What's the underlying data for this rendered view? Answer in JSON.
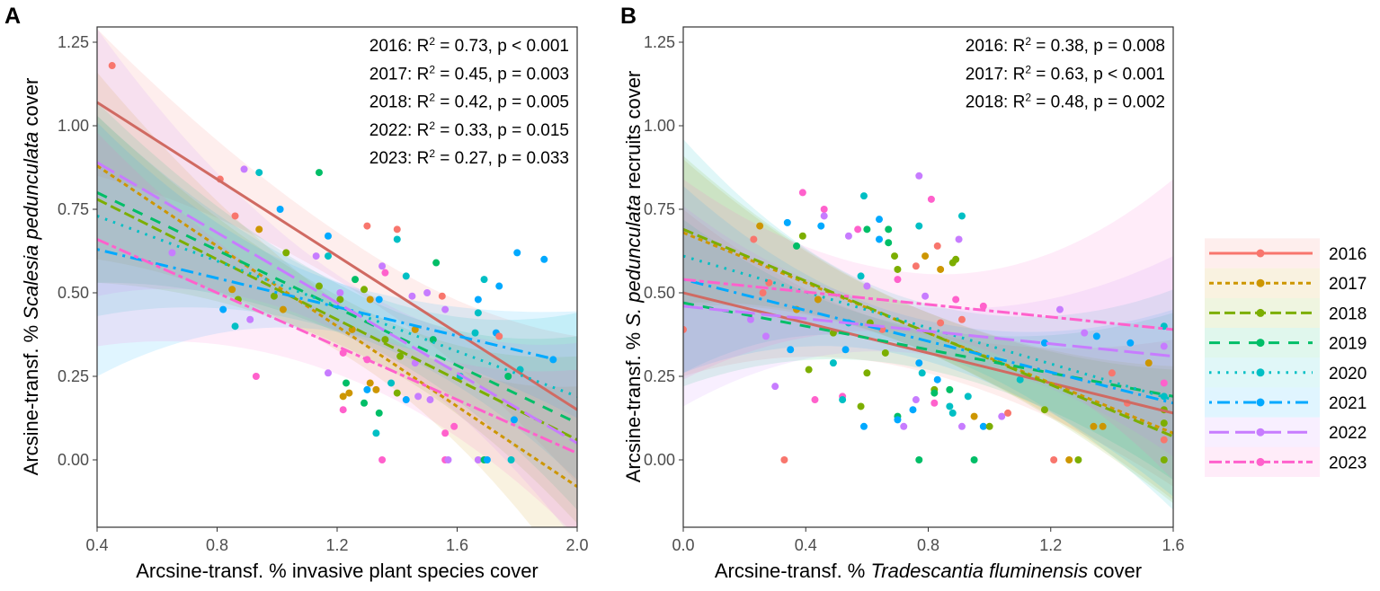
{
  "chart_data": [
    {
      "type": "scatter",
      "panel_label": "A",
      "xlabel_parts": [
        "Arcsine-transf. % invasive plant species cover"
      ],
      "ylabel_parts": [
        "Arcsine-transf. % ",
        "Scalesia pedunculata",
        " cover"
      ],
      "xlim": [
        0.4,
        2.0
      ],
      "ylim": [
        -0.2,
        1.29
      ],
      "xticks": [
        "0.4",
        "0.8",
        "1.2",
        "1.6",
        "2.0"
      ],
      "yticks": [
        "0.00",
        "0.25",
        "0.50",
        "0.75",
        "1.00",
        "1.25"
      ],
      "x_mean": 1.3,
      "annotations": [
        {
          "year": "2016",
          "r2": "0.73",
          "p": "p < 0.001"
        },
        {
          "year": "2017",
          "r2": "0.45",
          "p": "p = 0.003"
        },
        {
          "year": "2018",
          "r2": "0.42",
          "p": "p = 0.005"
        },
        {
          "year": "2022",
          "r2": "0.33",
          "p": "p = 0.015"
        },
        {
          "year": "2023",
          "r2": "0.27",
          "p": "p = 0.033"
        }
      ],
      "fits": [
        {
          "year": "2016",
          "x": [
            0.4,
            2.0
          ],
          "y": [
            1.07,
            0.15
          ],
          "ci": [
            0.22,
            0.07,
            0.22
          ]
        },
        {
          "year": "2017",
          "x": [
            0.4,
            2.0
          ],
          "y": [
            0.88,
            -0.08
          ],
          "ci": [
            0.28,
            0.07,
            0.3
          ]
        },
        {
          "year": "2018",
          "x": [
            0.4,
            2.0
          ],
          "y": [
            0.78,
            0.06
          ],
          "ci": [
            0.25,
            0.07,
            0.25
          ]
        },
        {
          "year": "2019",
          "x": [
            0.4,
            2.0
          ],
          "y": [
            0.8,
            0.11
          ],
          "ci": [
            0.27,
            0.07,
            0.26
          ]
        },
        {
          "year": "2020",
          "x": [
            0.4,
            2.0
          ],
          "y": [
            0.73,
            0.19
          ],
          "ci": [
            0.3,
            0.07,
            0.25
          ]
        },
        {
          "year": "2021",
          "x": [
            0.4,
            1.93
          ],
          "y": [
            0.63,
            0.3
          ],
          "ci": [
            0.38,
            0.07,
            0.16
          ]
        },
        {
          "year": "2022",
          "x": [
            0.4,
            2.0
          ],
          "y": [
            0.89,
            0.05
          ],
          "ci": [
            0.4,
            0.08,
            0.3
          ]
        },
        {
          "year": "2023",
          "x": [
            0.4,
            2.0
          ],
          "y": [
            0.66,
            0.02
          ],
          "ci": [
            0.32,
            0.08,
            0.25
          ]
        }
      ],
      "points": [
        [
          0.45,
          1.18,
          0
        ],
        [
          0.81,
          0.84,
          0
        ],
        [
          0.89,
          0.87,
          6
        ],
        [
          0.94,
          0.86,
          4
        ],
        [
          1.14,
          0.86,
          3
        ],
        [
          1.01,
          0.75,
          5
        ],
        [
          0.86,
          0.73,
          0
        ],
        [
          0.94,
          0.69,
          1
        ],
        [
          0.65,
          0.62,
          6
        ],
        [
          1.03,
          0.62,
          2
        ],
        [
          1.17,
          0.67,
          5
        ],
        [
          1.3,
          0.7,
          0
        ],
        [
          1.4,
          0.69,
          0
        ],
        [
          1.4,
          0.66,
          4
        ],
        [
          1.13,
          0.61,
          6
        ],
        [
          1.17,
          0.61,
          4
        ],
        [
          1.53,
          0.59,
          3
        ],
        [
          1.8,
          0.62,
          5
        ],
        [
          1.89,
          0.6,
          5
        ],
        [
          1.69,
          0.54,
          4
        ],
        [
          1.74,
          0.52,
          5
        ],
        [
          1.43,
          0.55,
          4
        ],
        [
          1.35,
          0.58,
          6
        ],
        [
          1.36,
          0.56,
          7
        ],
        [
          0.85,
          0.51,
          1
        ],
        [
          0.82,
          0.45,
          5
        ],
        [
          0.86,
          0.4,
          4
        ],
        [
          0.87,
          0.48,
          2
        ],
        [
          0.91,
          0.42,
          6
        ],
        [
          0.93,
          0.25,
          7
        ],
        [
          0.99,
          0.49,
          2
        ],
        [
          1.02,
          0.45,
          1
        ],
        [
          1.14,
          0.52,
          2
        ],
        [
          1.21,
          0.5,
          6
        ],
        [
          1.21,
          0.48,
          2
        ],
        [
          1.26,
          0.54,
          3
        ],
        [
          1.29,
          0.51,
          2
        ],
        [
          1.31,
          0.48,
          1
        ],
        [
          1.34,
          0.48,
          5
        ],
        [
          1.45,
          0.49,
          6
        ],
        [
          1.5,
          0.5,
          6
        ],
        [
          1.55,
          0.49,
          0
        ],
        [
          1.56,
          0.45,
          6
        ],
        [
          1.67,
          0.48,
          5
        ],
        [
          1.67,
          0.44,
          4
        ],
        [
          1.66,
          0.38,
          4
        ],
        [
          1.73,
          0.38,
          5
        ],
        [
          1.74,
          0.37,
          0
        ],
        [
          1.77,
          0.25,
          3
        ],
        [
          1.81,
          0.27,
          4
        ],
        [
          1.79,
          0.12,
          5
        ],
        [
          1.92,
          0.3,
          5
        ],
        [
          1.17,
          0.26,
          6
        ],
        [
          1.23,
          0.23,
          3
        ],
        [
          1.22,
          0.19,
          1
        ],
        [
          1.24,
          0.2,
          1
        ],
        [
          1.22,
          0.15,
          7
        ],
        [
          1.29,
          0.17,
          3
        ],
        [
          1.3,
          0.21,
          5
        ],
        [
          1.31,
          0.23,
          1
        ],
        [
          1.33,
          0.21,
          1
        ],
        [
          1.34,
          0.14,
          3
        ],
        [
          1.33,
          0.08,
          4
        ],
        [
          1.35,
          0.0,
          7
        ],
        [
          1.38,
          0.23,
          4
        ],
        [
          1.4,
          0.2,
          2
        ],
        [
          1.43,
          0.18,
          5
        ],
        [
          1.47,
          0.19,
          6
        ],
        [
          1.51,
          0.18,
          6
        ],
        [
          1.56,
          0.08,
          7
        ],
        [
          1.59,
          0.1,
          7
        ],
        [
          1.56,
          0.0,
          7
        ],
        [
          1.57,
          0.0,
          6
        ],
        [
          1.67,
          0.0,
          6
        ],
        [
          1.69,
          0.0,
          3
        ],
        [
          1.7,
          0.0,
          5
        ],
        [
          1.78,
          0.0,
          4
        ],
        [
          1.25,
          0.39,
          1
        ],
        [
          1.36,
          0.36,
          2
        ],
        [
          1.46,
          0.39,
          1
        ],
        [
          1.52,
          0.36,
          3
        ],
        [
          1.41,
          0.31,
          2
        ],
        [
          1.3,
          0.3,
          7
        ],
        [
          1.22,
          0.32,
          7
        ],
        [
          1.46,
          0.29,
          6
        ],
        [
          1.61,
          0.25,
          4
        ]
      ]
    },
    {
      "type": "scatter",
      "panel_label": "B",
      "xlabel_parts": [
        "Arcsine-transf. % ",
        "Tradescantia fluminensis",
        " cover"
      ],
      "ylabel_parts": [
        "Arcsine-transf. % ",
        "S. pedunculata",
        " recruits cover"
      ],
      "xlim": [
        0.0,
        1.6
      ],
      "ylim": [
        -0.2,
        1.29
      ],
      "xticks": [
        "0.0",
        "0.4",
        "0.8",
        "1.2",
        "1.6"
      ],
      "yticks": [
        "0.00",
        "0.25",
        "0.50",
        "0.75",
        "1.00",
        "1.25"
      ],
      "x_mean": 0.75,
      "annotations": [
        {
          "year": "2016",
          "r2": "0.38",
          "p": "p = 0.008"
        },
        {
          "year": "2017",
          "r2": "0.63",
          "p": "p < 0.001"
        },
        {
          "year": "2018",
          "r2": "0.48",
          "p": "p = 0.002"
        }
      ],
      "fits": [
        {
          "year": "2016",
          "x": [
            0.0,
            1.6
          ],
          "y": [
            0.5,
            0.14
          ],
          "ci": [
            0.25,
            0.06,
            0.22
          ]
        },
        {
          "year": "2017",
          "x": [
            0.0,
            1.6
          ],
          "y": [
            0.68,
            0.08
          ],
          "ci": [
            0.22,
            0.06,
            0.2
          ]
        },
        {
          "year": "2018",
          "x": [
            0.0,
            1.6
          ],
          "y": [
            0.69,
            0.07
          ],
          "ci": [
            0.22,
            0.06,
            0.2
          ]
        },
        {
          "year": "2019",
          "x": [
            0.0,
            1.6
          ],
          "y": [
            0.47,
            0.19
          ],
          "ci": [
            0.25,
            0.06,
            0.25
          ]
        },
        {
          "year": "2020",
          "x": [
            0.0,
            1.6
          ],
          "y": [
            0.61,
            0.18
          ],
          "ci": [
            0.35,
            0.07,
            0.33
          ]
        },
        {
          "year": "2021",
          "x": [
            0.0,
            1.6
          ],
          "y": [
            0.54,
            0.17
          ],
          "ci": [
            0.28,
            0.06,
            0.28
          ]
        },
        {
          "year": "2022",
          "x": [
            0.0,
            1.6
          ],
          "y": [
            0.46,
            0.31
          ],
          "ci": [
            0.3,
            0.07,
            0.3
          ]
        },
        {
          "year": "2023",
          "x": [
            0.0,
            1.6
          ],
          "y": [
            0.54,
            0.39
          ],
          "ci": [
            0.3,
            0.09,
            0.45
          ]
        }
      ],
      "points": [
        [
          0.0,
          0.39,
          0
        ],
        [
          0.23,
          0.66,
          0
        ],
        [
          0.25,
          0.7,
          1
        ],
        [
          0.22,
          0.42,
          6
        ],
        [
          0.26,
          0.5,
          0
        ],
        [
          0.28,
          0.53,
          0
        ],
        [
          0.27,
          0.37,
          6
        ],
        [
          0.3,
          0.22,
          6
        ],
        [
          0.33,
          0.0,
          0
        ],
        [
          0.34,
          0.71,
          5
        ],
        [
          0.35,
          0.33,
          5
        ],
        [
          0.37,
          0.64,
          3
        ],
        [
          0.37,
          0.45,
          1
        ],
        [
          0.39,
          0.8,
          7
        ],
        [
          0.39,
          0.67,
          2
        ],
        [
          0.41,
          0.27,
          2
        ],
        [
          0.43,
          0.18,
          7
        ],
        [
          0.44,
          0.48,
          1
        ],
        [
          0.45,
          0.7,
          5
        ],
        [
          0.46,
          0.75,
          7
        ],
        [
          0.46,
          0.73,
          6
        ],
        [
          0.49,
          0.38,
          2
        ],
        [
          0.49,
          0.29,
          4
        ],
        [
          0.52,
          0.19,
          7
        ],
        [
          0.52,
          0.18,
          4
        ],
        [
          0.53,
          0.33,
          5
        ],
        [
          0.54,
          0.67,
          6
        ],
        [
          0.54,
          0.41,
          4
        ],
        [
          0.57,
          0.69,
          7
        ],
        [
          0.58,
          0.55,
          4
        ],
        [
          0.58,
          0.16,
          2
        ],
        [
          0.59,
          0.1,
          5
        ],
        [
          0.59,
          0.79,
          4
        ],
        [
          0.6,
          0.69,
          3
        ],
        [
          0.6,
          0.26,
          2
        ],
        [
          0.6,
          0.52,
          6
        ],
        [
          0.61,
          0.41,
          2
        ],
        [
          0.64,
          0.66,
          5
        ],
        [
          0.64,
          0.72,
          5
        ],
        [
          0.65,
          0.39,
          0
        ],
        [
          0.66,
          0.32,
          2
        ],
        [
          0.67,
          0.69,
          3
        ],
        [
          0.67,
          0.65,
          3
        ],
        [
          0.69,
          0.61,
          2
        ],
        [
          0.7,
          0.54,
          7
        ],
        [
          0.7,
          0.57,
          2
        ],
        [
          0.7,
          0.13,
          3
        ],
        [
          0.7,
          0.12,
          5
        ],
        [
          0.72,
          0.1,
          6
        ],
        [
          0.75,
          0.15,
          5
        ],
        [
          0.76,
          0.18,
          6
        ],
        [
          0.76,
          0.58,
          0
        ],
        [
          0.77,
          0.7,
          4
        ],
        [
          0.77,
          0.29,
          5
        ],
        [
          0.77,
          0.85,
          6
        ],
        [
          0.77,
          0.0,
          3
        ],
        [
          0.78,
          0.26,
          4
        ],
        [
          0.79,
          0.61,
          1
        ],
        [
          0.79,
          0.49,
          6
        ],
        [
          0.81,
          0.78,
          7
        ],
        [
          0.82,
          0.21,
          2
        ],
        [
          0.82,
          0.2,
          3
        ],
        [
          0.82,
          0.17,
          7
        ],
        [
          0.83,
          0.64,
          0
        ],
        [
          0.84,
          0.57,
          1
        ],
        [
          0.83,
          0.24,
          5
        ],
        [
          0.84,
          0.41,
          0
        ],
        [
          0.87,
          0.21,
          3
        ],
        [
          0.87,
          0.16,
          4
        ],
        [
          0.88,
          0.59,
          2
        ],
        [
          0.88,
          0.14,
          4
        ],
        [
          0.89,
          0.6,
          2
        ],
        [
          0.9,
          0.66,
          6
        ],
        [
          0.89,
          0.48,
          7
        ],
        [
          0.91,
          0.73,
          4
        ],
        [
          0.91,
          0.42,
          0
        ],
        [
          0.91,
          0.1,
          6
        ],
        [
          0.93,
          0.19,
          4
        ],
        [
          0.95,
          0.0,
          3
        ],
        [
          0.95,
          0.13,
          1
        ],
        [
          0.98,
          0.1,
          5
        ],
        [
          1.0,
          0.1,
          2
        ],
        [
          0.98,
          0.46,
          7
        ],
        [
          1.04,
          0.13,
          6
        ],
        [
          1.06,
          0.14,
          0
        ],
        [
          1.1,
          0.24,
          4
        ],
        [
          1.18,
          0.15,
          2
        ],
        [
          1.18,
          0.35,
          5
        ],
        [
          1.21,
          0.0,
          0
        ],
        [
          1.23,
          0.45,
          6
        ],
        [
          1.26,
          0.0,
          1
        ],
        [
          1.29,
          0.0,
          2
        ],
        [
          1.31,
          0.38,
          6
        ],
        [
          1.34,
          0.1,
          1
        ],
        [
          1.35,
          0.37,
          5
        ],
        [
          1.37,
          0.1,
          1
        ],
        [
          1.4,
          0.26,
          0
        ],
        [
          1.45,
          0.17,
          0
        ],
        [
          1.46,
          0.35,
          5
        ],
        [
          1.52,
          0.29,
          1
        ],
        [
          1.57,
          0.4,
          4
        ],
        [
          1.57,
          0.34,
          6
        ],
        [
          1.57,
          0.23,
          7
        ],
        [
          1.57,
          0.19,
          4
        ],
        [
          1.57,
          0.15,
          2
        ],
        [
          1.57,
          0.11,
          2
        ],
        [
          1.57,
          0.06,
          0
        ],
        [
          1.57,
          0.0,
          2
        ]
      ]
    }
  ],
  "legend": {
    "placement": "right",
    "items": [
      {
        "year": "2016",
        "color": "#F8766D",
        "dash": "solid"
      },
      {
        "year": "2017",
        "color": "#CD9600",
        "dash": "dotted-short"
      },
      {
        "year": "2018",
        "color": "#7CAE00",
        "dash": "dashed"
      },
      {
        "year": "2019",
        "color": "#00BE67",
        "dash": "dashed-wide"
      },
      {
        "year": "2020",
        "color": "#00BFC4",
        "dash": "dotted"
      },
      {
        "year": "2021",
        "color": "#00A9FF",
        "dash": "dot-dash"
      },
      {
        "year": "2022",
        "color": "#C77CFF",
        "dash": "long-dash"
      },
      {
        "year": "2023",
        "color": "#FF61CC",
        "dash": "two-dash"
      }
    ]
  }
}
